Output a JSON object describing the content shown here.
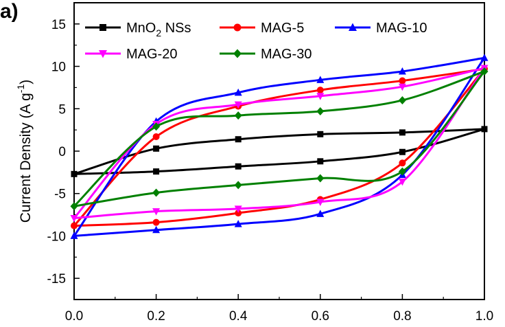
{
  "panel_label": "a)",
  "chart_data": {
    "type": "line",
    "title": "",
    "xlabel": "",
    "ylabel": {
      "main": "Current Density (A g",
      "sup": "-1",
      "end": ")"
    },
    "xlim": [
      0.0,
      1.0
    ],
    "ylim": [
      -17.5,
      17.5
    ],
    "xticks": [
      "0.0",
      "0.2",
      "0.4",
      "0.6",
      "0.8",
      "1.0"
    ],
    "yticks": [
      "15",
      "10",
      "5",
      "0",
      "-5",
      "-10",
      "-15"
    ],
    "legend_position": "top",
    "series": [
      {
        "name": "MnO2 NSs",
        "legend": {
          "pre": "MnO",
          "sub": "2",
          "post": " NSs"
        },
        "color": "#000000",
        "marker": "square",
        "upper": [
          [
            0.0,
            -2.7
          ],
          [
            0.2,
            0.3
          ],
          [
            0.4,
            1.4
          ],
          [
            0.6,
            2.0
          ],
          [
            0.8,
            2.2
          ],
          [
            1.0,
            2.6
          ]
        ],
        "lower": [
          [
            1.0,
            2.6
          ],
          [
            0.8,
            -0.1
          ],
          [
            0.6,
            -1.2
          ],
          [
            0.4,
            -1.8
          ],
          [
            0.2,
            -2.4
          ],
          [
            0.0,
            -2.7
          ]
        ]
      },
      {
        "name": "MAG-5",
        "legend": {
          "pre": "MAG-5",
          "sub": "",
          "post": ""
        },
        "color": "#ff0000",
        "marker": "circle",
        "upper": [
          [
            0.0,
            -8.8
          ],
          [
            0.2,
            1.7
          ],
          [
            0.4,
            5.3
          ],
          [
            0.6,
            7.2
          ],
          [
            0.8,
            8.3
          ],
          [
            1.0,
            9.7
          ]
        ],
        "lower": [
          [
            1.0,
            9.7
          ],
          [
            0.8,
            -1.4
          ],
          [
            0.6,
            -5.7
          ],
          [
            0.4,
            -7.3
          ],
          [
            0.2,
            -8.4
          ],
          [
            0.0,
            -8.8
          ]
        ]
      },
      {
        "name": "MAG-10",
        "legend": {
          "pre": "MAG-10",
          "sub": "",
          "post": ""
        },
        "color": "#0000ff",
        "marker": "triangle-up",
        "upper": [
          [
            0.0,
            -10.0
          ],
          [
            0.2,
            3.5
          ],
          [
            0.4,
            6.9
          ],
          [
            0.6,
            8.4
          ],
          [
            0.8,
            9.4
          ],
          [
            1.0,
            11.0
          ]
        ],
        "lower": [
          [
            1.0,
            11.0
          ],
          [
            0.8,
            -2.8
          ],
          [
            0.6,
            -7.4
          ],
          [
            0.4,
            -8.6
          ],
          [
            0.2,
            -9.3
          ],
          [
            0.0,
            -10.0
          ]
        ]
      },
      {
        "name": "MAG-20",
        "legend": {
          "pre": "MAG-20",
          "sub": "",
          "post": ""
        },
        "color": "#ff00ff",
        "marker": "triangle-down",
        "upper": [
          [
            0.0,
            -7.9
          ],
          [
            0.2,
            3.2
          ],
          [
            0.4,
            5.5
          ],
          [
            0.6,
            6.5
          ],
          [
            0.8,
            7.6
          ],
          [
            1.0,
            9.8
          ]
        ],
        "lower": [
          [
            1.0,
            9.8
          ],
          [
            0.8,
            -3.6
          ],
          [
            0.6,
            -6.0
          ],
          [
            0.4,
            -6.8
          ],
          [
            0.2,
            -7.1
          ],
          [
            0.0,
            -7.9
          ]
        ]
      },
      {
        "name": "MAG-30",
        "legend": {
          "pre": "MAG-30",
          "sub": "",
          "post": ""
        },
        "color": "#008000",
        "marker": "diamond",
        "upper": [
          [
            0.0,
            -6.5
          ],
          [
            0.2,
            2.9
          ],
          [
            0.4,
            4.2
          ],
          [
            0.6,
            4.7
          ],
          [
            0.8,
            6.0
          ],
          [
            1.0,
            9.4
          ]
        ],
        "lower": [
          [
            1.0,
            9.4
          ],
          [
            0.8,
            -2.4
          ],
          [
            0.6,
            -3.2
          ],
          [
            0.4,
            -4.0
          ],
          [
            0.2,
            -4.9
          ],
          [
            0.0,
            -6.5
          ]
        ]
      }
    ]
  }
}
